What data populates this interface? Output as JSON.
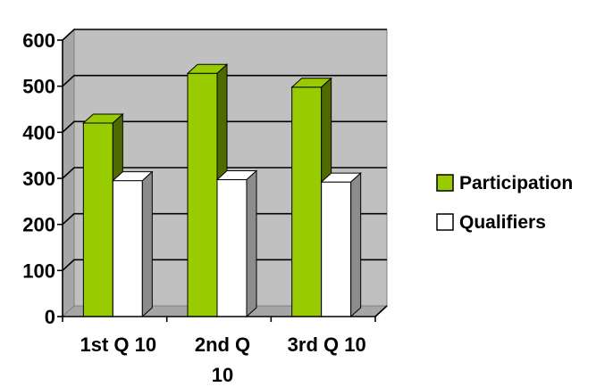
{
  "chart_data": {
    "type": "bar",
    "categories": [
      "1st Q 10",
      "2nd Q 10",
      "3rd Q 10"
    ],
    "series": [
      {
        "name": "Participation",
        "values": [
          420,
          528,
          498
        ],
        "color": "#99cc00",
        "side_color": "#4f6b00"
      },
      {
        "name": "Qualifiers",
        "values": [
          295,
          297,
          292
        ],
        "color": "#ffffff",
        "side_color": "#8c8c8c"
      }
    ],
    "ylim": [
      0,
      600
    ],
    "yticks": [
      "0",
      "100",
      "200",
      "300",
      "400",
      "500",
      "600"
    ],
    "grid": true,
    "legend": "right",
    "plot_background": "#c0c0c0"
  }
}
